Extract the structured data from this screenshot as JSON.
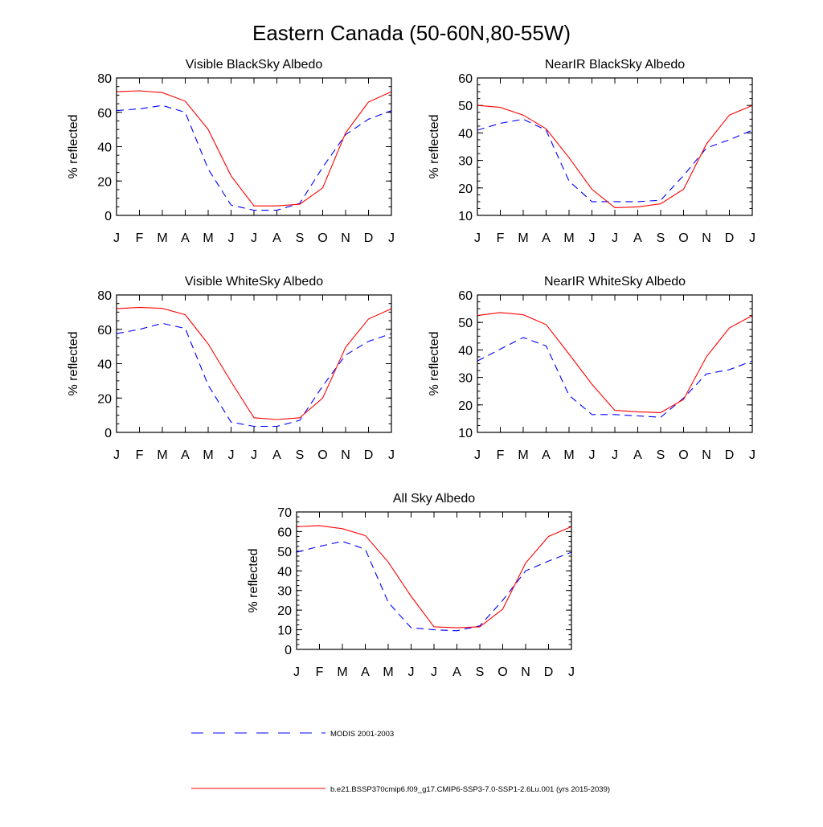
{
  "figure": {
    "title": "Eastern Canada (50-60N,80-55W)"
  },
  "legend": {
    "placement": "bottom",
    "entries": [
      {
        "label": "MODIS 2001-2003",
        "color": "#0000ff",
        "style": "dashed"
      },
      {
        "label": "b.e21.BSSP370cmip6.f09_g17.CMIP6-SSP3-7.0-SSP1-2.6Lu.001 (yrs 2015-2039)",
        "color": "#ff0000",
        "style": "solid"
      }
    ]
  },
  "chart_data": [
    {
      "type": "line",
      "title": "Visible BlackSky Albedo",
      "xlabel": "",
      "ylabel": "% reflected",
      "categories": [
        "J",
        "F",
        "M",
        "A",
        "M",
        "J",
        "J",
        "A",
        "S",
        "O",
        "N",
        "D",
        "J"
      ],
      "ylim": [
        0,
        80
      ],
      "yticks": [
        0,
        20,
        40,
        60,
        80
      ],
      "grid": false,
      "series": [
        {
          "name": "MODIS 2001-2003",
          "color": "#0000ff",
          "dash": "dashed",
          "values": [
            61,
            62,
            64,
            60,
            27,
            6,
            3,
            3,
            7,
            28,
            47,
            56,
            61
          ]
        },
        {
          "name": "b.e21.BSSP370cmip6.f09_g17.CMIP6-SSP3-7.0-SSP1-2.6Lu.001 (yrs 2015-2039)",
          "color": "#ff0000",
          "dash": "solid",
          "values": [
            72,
            72.5,
            71.5,
            66.5,
            50,
            23,
            5.5,
            5.5,
            6.5,
            16,
            48,
            66,
            72
          ]
        }
      ]
    },
    {
      "type": "line",
      "title": "NearIR BlackSky Albedo",
      "xlabel": "",
      "ylabel": "% reflected",
      "categories": [
        "J",
        "F",
        "M",
        "A",
        "M",
        "J",
        "J",
        "A",
        "S",
        "O",
        "N",
        "D",
        "J"
      ],
      "ylim": [
        10,
        60
      ],
      "yticks": [
        10,
        20,
        30,
        40,
        50,
        60
      ],
      "grid": false,
      "series": [
        {
          "name": "MODIS 2001-2003",
          "color": "#0000ff",
          "dash": "dashed",
          "values": [
            41,
            43.5,
            45,
            41,
            22.5,
            15,
            15,
            15,
            15.5,
            24.5,
            34.5,
            37.5,
            41
          ]
        },
        {
          "name": "b.e21.BSSP370cmip6.f09_g17.CMIP6-SSP3-7.0-SSP1-2.6Lu.001 (yrs 2015-2039)",
          "color": "#ff0000",
          "dash": "solid",
          "values": [
            50,
            49.3,
            46.5,
            41.5,
            31,
            19.5,
            12.8,
            13.1,
            14.2,
            19.5,
            36,
            46.5,
            50
          ]
        }
      ]
    },
    {
      "type": "line",
      "title": "Visible WhiteSky Albedo",
      "xlabel": "",
      "ylabel": "% reflected",
      "categories": [
        "J",
        "F",
        "M",
        "A",
        "M",
        "J",
        "J",
        "A",
        "S",
        "O",
        "N",
        "D",
        "J"
      ],
      "ylim": [
        0,
        80
      ],
      "yticks": [
        0,
        20,
        40,
        60,
        80
      ],
      "grid": false,
      "series": [
        {
          "name": "MODIS 2001-2003",
          "color": "#0000ff",
          "dash": "dashed",
          "values": [
            57.5,
            60,
            63.5,
            60.5,
            27.5,
            6,
            3.5,
            3.5,
            7,
            27,
            45,
            53,
            57.5
          ]
        },
        {
          "name": "b.e21.BSSP370cmip6.f09_g17.CMIP6-SSP3-7.0-SSP1-2.6Lu.001 (yrs 2015-2039)",
          "color": "#ff0000",
          "dash": "solid",
          "values": [
            72,
            72.8,
            72.2,
            68.5,
            51.5,
            29.5,
            8.5,
            7.5,
            8.5,
            20,
            49.5,
            66,
            72
          ]
        }
      ]
    },
    {
      "type": "line",
      "title": "NearIR WhiteSky Albedo",
      "xlabel": "",
      "ylabel": "% reflected",
      "categories": [
        "J",
        "F",
        "M",
        "A",
        "M",
        "J",
        "J",
        "A",
        "S",
        "O",
        "N",
        "D",
        "J"
      ],
      "ylim": [
        10,
        60
      ],
      "yticks": [
        10,
        20,
        30,
        40,
        50,
        60
      ],
      "grid": false,
      "series": [
        {
          "name": "MODIS 2001-2003",
          "color": "#0000ff",
          "dash": "dashed",
          "values": [
            36,
            40.3,
            44.5,
            41.5,
            23.5,
            16.5,
            16.5,
            16,
            15.5,
            22.5,
            31.3,
            32.8,
            36
          ]
        },
        {
          "name": "b.e21.BSSP370cmip6.f09_g17.CMIP6-SSP3-7.0-SSP1-2.6Lu.001 (yrs 2015-2039)",
          "color": "#ff0000",
          "dash": "solid",
          "values": [
            52.5,
            53.6,
            52.8,
            49.2,
            38.5,
            27.5,
            18,
            17.5,
            17.2,
            22,
            37.5,
            48,
            52.5
          ]
        }
      ]
    },
    {
      "type": "line",
      "title": "All Sky Albedo",
      "xlabel": "",
      "ylabel": "% reflected",
      "categories": [
        "J",
        "F",
        "M",
        "A",
        "M",
        "J",
        "J",
        "A",
        "S",
        "O",
        "N",
        "D",
        "J"
      ],
      "ylim": [
        0,
        70
      ],
      "yticks": [
        0,
        10,
        20,
        30,
        40,
        50,
        60,
        70
      ],
      "grid": false,
      "series": [
        {
          "name": "MODIS 2001-2003",
          "color": "#0000ff",
          "dash": "dashed",
          "values": [
            49.5,
            52.5,
            55,
            51,
            24,
            11,
            10,
            9.5,
            12,
            25,
            40,
            45,
            49.5
          ]
        },
        {
          "name": "b.e21.BSSP370cmip6.f09_g17.CMIP6-SSP3-7.0-SSP1-2.6Lu.001 (yrs 2015-2039)",
          "color": "#ff0000",
          "dash": "solid",
          "values": [
            62.5,
            63,
            61.5,
            58,
            44.5,
            27,
            11.5,
            11,
            11.5,
            20.5,
            44,
            57.5,
            62.5
          ]
        }
      ]
    }
  ]
}
